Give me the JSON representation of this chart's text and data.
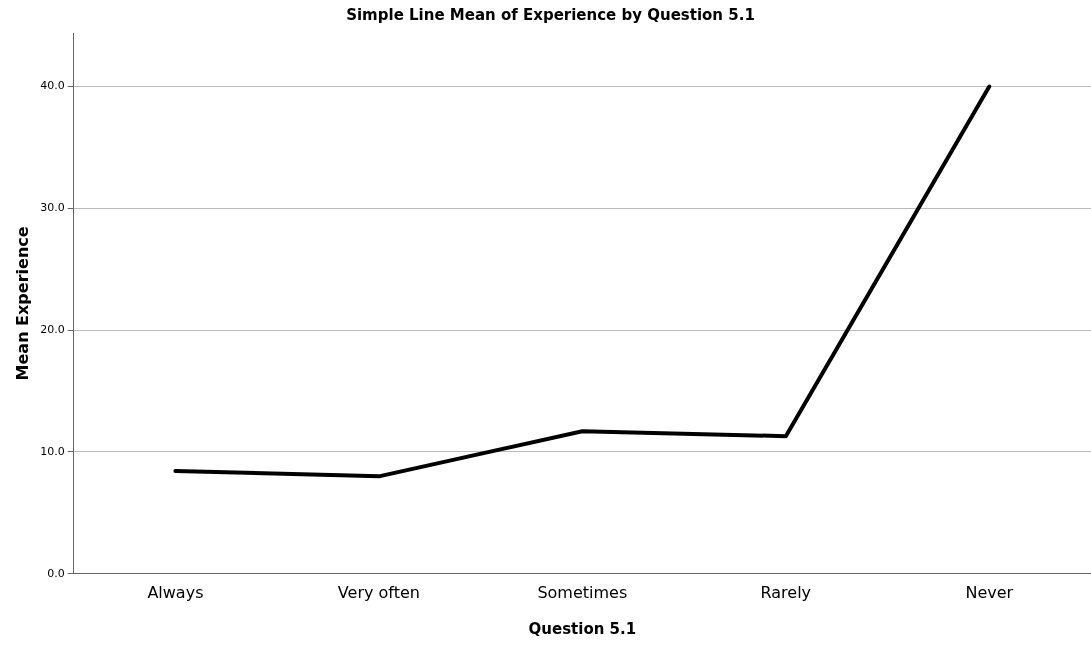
{
  "chart_data": {
    "type": "line",
    "title": "Simple Line Mean of Experience by Question 5.1",
    "xlabel": "Question 5.1",
    "ylabel": "Mean Experience",
    "categories": [
      "Always",
      "Very often",
      "Sometimes",
      "Rarely",
      "Never"
    ],
    "series": [
      {
        "color": "#000000",
        "values": [
          8.45,
          8.0,
          11.7,
          11.3,
          40.0
        ]
      }
    ],
    "ylim": [
      0,
      44.4
    ],
    "yticks": [
      {
        "value": 0,
        "label": "0.0"
      },
      {
        "value": 10,
        "label": "10.0"
      },
      {
        "value": 20,
        "label": "20.0"
      },
      {
        "value": 30,
        "label": "30.0"
      },
      {
        "value": 40,
        "label": "40.0"
      }
    ],
    "grid": "y",
    "legend": false,
    "marker": "none",
    "line_style": "solid"
  }
}
